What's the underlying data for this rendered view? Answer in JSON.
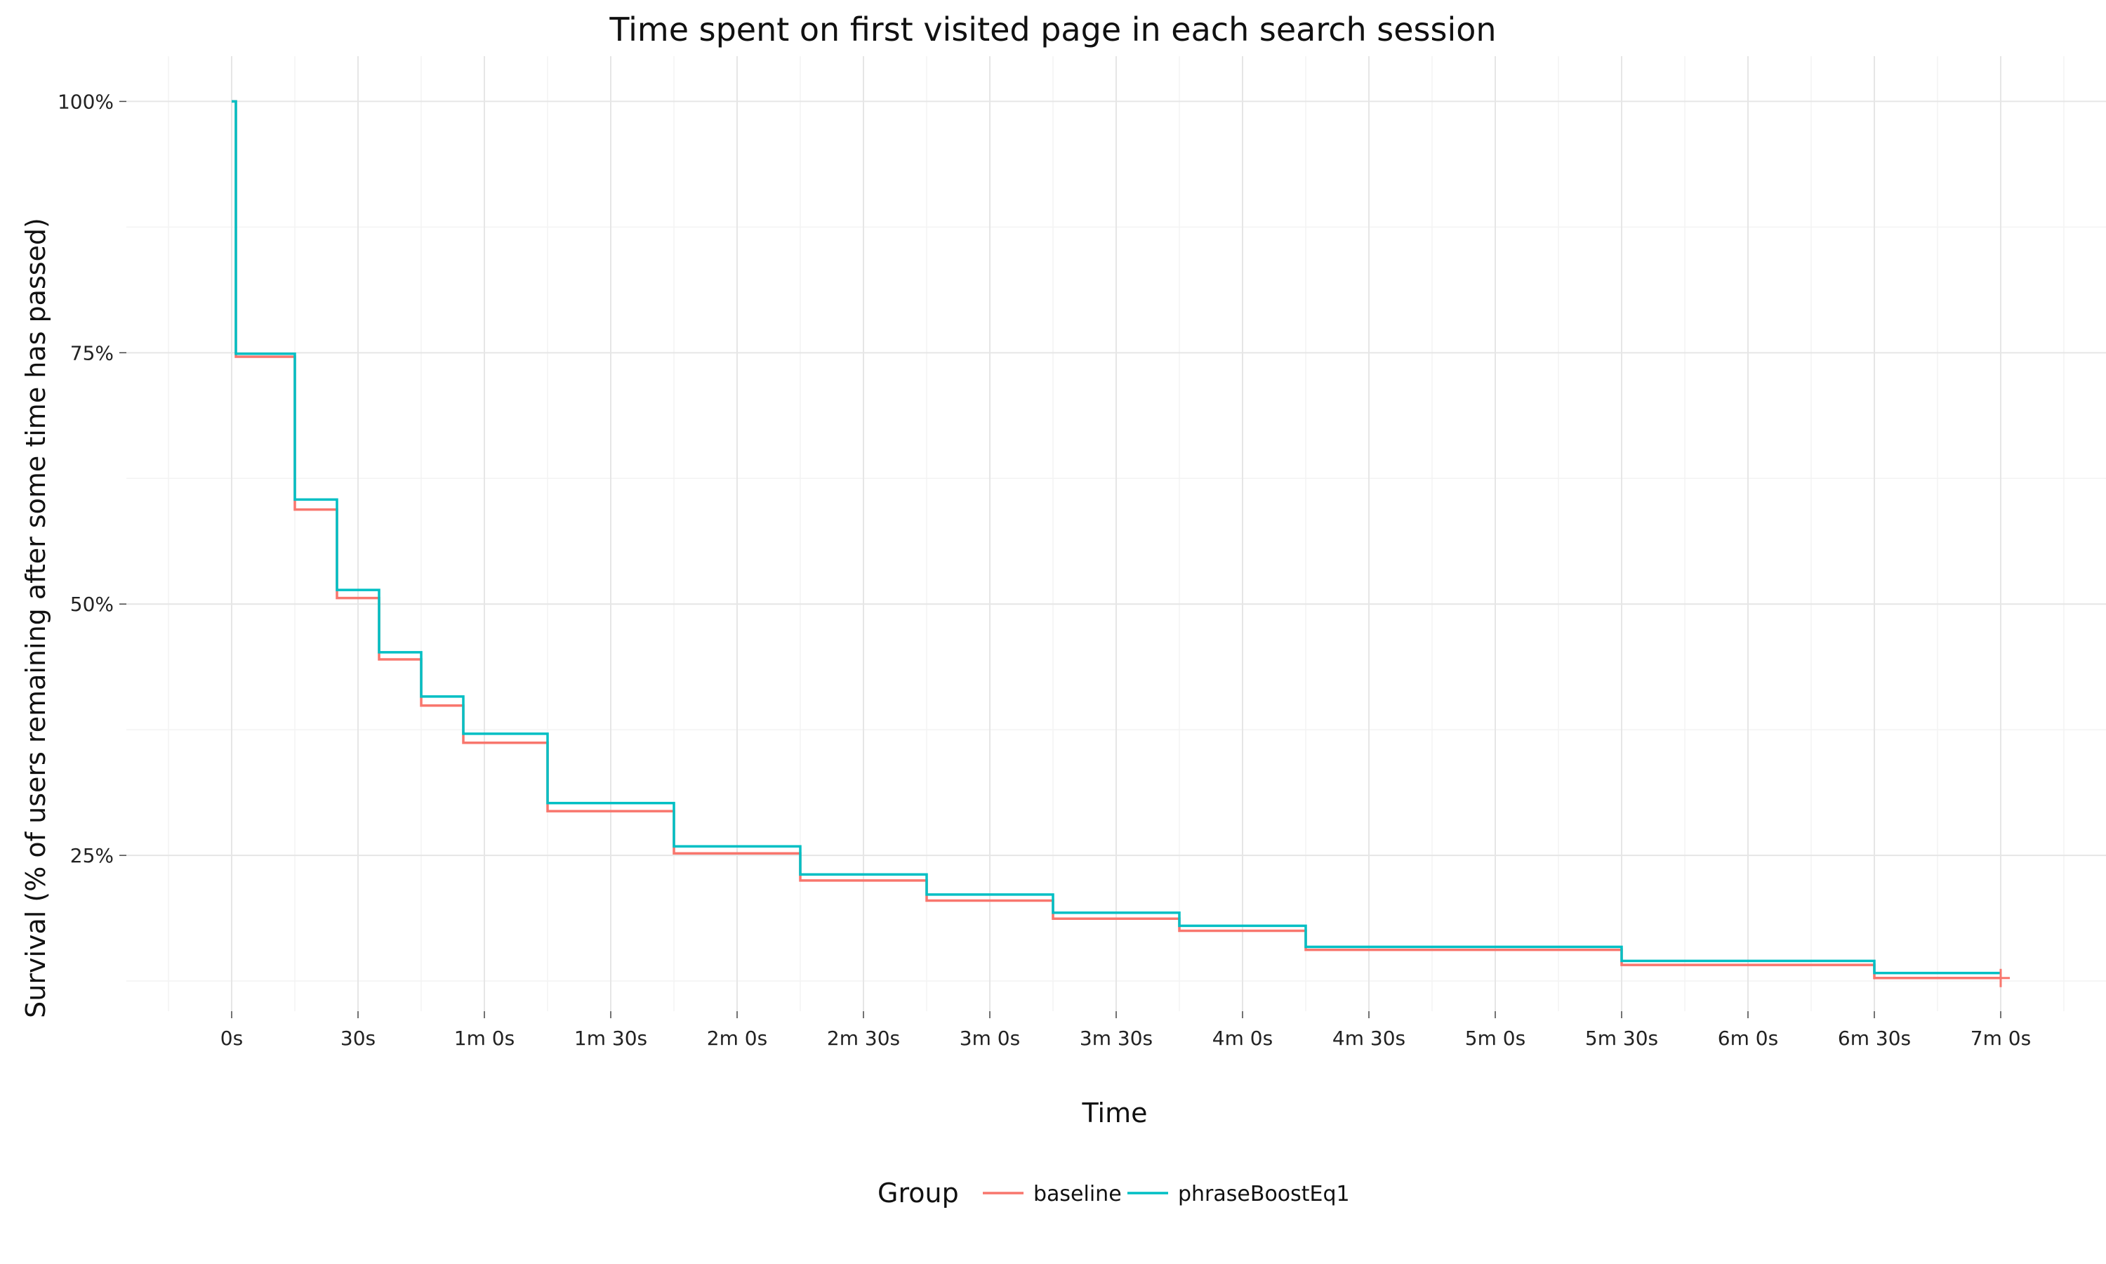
{
  "chart_data": {
    "type": "line",
    "step": true,
    "title": "Time spent on first visited page in each search session",
    "xlabel": "Time",
    "ylabel": "Survival (% of users remaining after some time has passed)",
    "xlim": [
      -25,
      445
    ],
    "ylim": [
      0.095,
      1.045
    ],
    "x_ticks": [
      0,
      30,
      60,
      90,
      120,
      150,
      180,
      210,
      240,
      270,
      300,
      330,
      360,
      390,
      420
    ],
    "x_tick_labels": [
      "0s",
      "30s",
      "1m 0s",
      "1m 30s",
      "2m 0s",
      "2m 30s",
      "3m 0s",
      "3m 30s",
      "4m 0s",
      "4m 30s",
      "5m 0s",
      "5m 30s",
      "6m 0s",
      "6m 30s",
      "7m 0s"
    ],
    "y_ticks": [
      0.25,
      0.5,
      0.75,
      1.0
    ],
    "y_tick_labels": [
      "25%",
      "50%",
      "75%",
      "100%"
    ],
    "grid": true,
    "legend": {
      "title": "Group",
      "position": "bottom",
      "entries": [
        "baseline",
        "phraseBoostEq1"
      ]
    },
    "series": [
      {
        "name": "baseline",
        "color": "#F8766D",
        "x": [
          0,
          1,
          15,
          25,
          35,
          45,
          55,
          75,
          105,
          135,
          165,
          195,
          225,
          255,
          270,
          330,
          390,
          420
        ],
        "y": [
          1.0,
          0.746,
          0.594,
          0.506,
          0.445,
          0.399,
          0.362,
          0.294,
          0.252,
          0.225,
          0.205,
          0.187,
          0.175,
          0.156,
          0.156,
          0.141,
          0.128,
          0.128
        ]
      },
      {
        "name": "phraseBoostEq1",
        "color": "#00BFC4",
        "x": [
          0,
          1,
          15,
          25,
          35,
          45,
          55,
          75,
          105,
          135,
          165,
          195,
          225,
          255,
          270,
          330,
          390,
          420
        ],
        "y": [
          1.0,
          0.749,
          0.604,
          0.514,
          0.452,
          0.408,
          0.371,
          0.302,
          0.259,
          0.231,
          0.211,
          0.193,
          0.18,
          0.159,
          0.159,
          0.145,
          0.133,
          0.133
        ]
      }
    ],
    "censor_marks": [
      {
        "series": "baseline",
        "x": 420,
        "y": 0.128
      }
    ]
  }
}
